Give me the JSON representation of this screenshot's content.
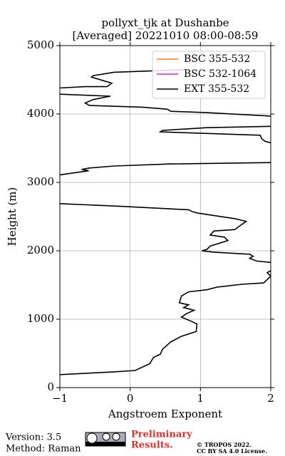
{
  "chart_data": {
    "type": "line",
    "orientation": "vertical-profile",
    "title": [
      "pollyxt_tjk at Dushanbe",
      "[Averaged] 20221010 08:00-08:59"
    ],
    "x_label": "Angstroem Exponent",
    "y_label": "Height (m)",
    "xlim": [
      -1,
      2
    ],
    "ylim": [
      0,
      5000
    ],
    "xticks": [
      {
        "value": -1,
        "label": "−1"
      },
      0,
      1,
      2
    ],
    "yticks": [
      0,
      1000,
      2000,
      3000,
      4000,
      5000
    ],
    "grid": true,
    "legend": "upper right",
    "series": [
      {
        "name": "BSC 355-532",
        "color": "#ff7f0e",
        "values": [],
        "heights": []
      },
      {
        "name": "BSC 532-1064",
        "color": "#e020e0",
        "values": [],
        "heights": []
      },
      {
        "name": "EXT 355-532",
        "color": "#000000",
        "values": [
          0.83,
          -0.23,
          -0.53,
          -0.55,
          -0.26,
          -0.33,
          -0.64,
          -1.0,
          null,
          -1.0,
          -0.28,
          -0.53,
          -0.64,
          -0.58,
          0.18,
          0.53,
          0.58,
          1.09,
          2.0,
          null,
          2.0,
          1.09,
          0.46,
          0.43,
          0.68,
          1.85,
          1.87,
          1.92,
          2.0,
          null,
          2.0,
          0.58,
          -0.23,
          -0.58,
          -0.69,
          -0.59,
          -1.0,
          null,
          -1.0,
          -0.13,
          0.83,
          0.89,
          0.97,
          1.49,
          1.65,
          1.54,
          1.49,
          1.19,
          1.14,
          1.34,
          1.39,
          1.14,
          1.09,
          1.02,
          1.19,
          1.7,
          1.75,
          1.7,
          1.8,
          2.0,
          null,
          2.0,
          1.95,
          2.0,
          1.9,
          1.59,
          1.24,
          1.09,
          0.83,
          0.73,
          0.7,
          0.83,
          0.76,
          0.91,
          0.8,
          0.73,
          0.89,
          0.95,
          0.94,
          0.73,
          0.58,
          0.46,
          0.43,
          0.33,
          0.28,
          0.07,
          -0.23,
          -1.0
        ],
        "heights": [
          4650,
          4610,
          4560,
          4540,
          4450,
          4400,
          4400,
          4380,
          null,
          4290,
          4260,
          4210,
          4160,
          4125,
          4100,
          4070,
          4040,
          4020,
          3970,
          null,
          3820,
          3800,
          3760,
          3740,
          3730,
          3690,
          3640,
          3600,
          3580,
          null,
          3290,
          3270,
          3240,
          3210,
          3190,
          3170,
          3110,
          null,
          2690,
          2650,
          2600,
          2570,
          2550,
          2470,
          2430,
          2350,
          2310,
          2290,
          2230,
          2200,
          2150,
          2070,
          2020,
          2000,
          1980,
          1950,
          1920,
          1890,
          1850,
          1830,
          null,
          1710,
          1680,
          1630,
          1530,
          1510,
          1470,
          1430,
          1400,
          1340,
          1240,
          1210,
          1170,
          1130,
          1080,
          1030,
          960,
          930,
          820,
          750,
          670,
          560,
          490,
          440,
          350,
          250,
          230,
          190
        ]
      }
    ],
    "annotations": {
      "version": "Version: 3.5",
      "method": "Method: Raman",
      "preliminary": [
        "Preliminary",
        "Results."
      ],
      "copyright": [
        "© TROPOS 2022.",
        "CC BY SA 4.0 License."
      ]
    }
  }
}
